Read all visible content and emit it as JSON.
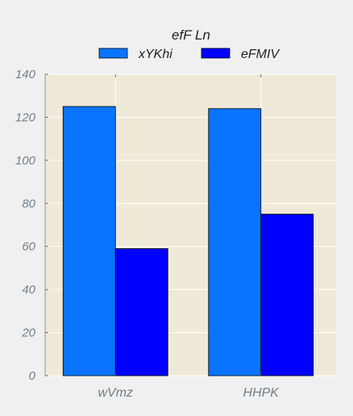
{
  "chart_data": {
    "type": "bar",
    "categories": [
      "wVmz",
      "HHPK"
    ],
    "series": [
      {
        "name": "xYKhi",
        "values": [
          125,
          124
        ],
        "color": "#0a74ff"
      },
      {
        "name": "eFMIV",
        "values": [
          59,
          75
        ],
        "color": "#0000ff"
      }
    ],
    "ylim": [
      0,
      140
    ],
    "yticks": [
      0,
      20,
      40,
      60,
      80,
      100,
      120,
      140
    ],
    "legend_title": "efF Ln",
    "legend_position": "top-center",
    "grid": true,
    "colors": {
      "plot_background": "#efe9d8",
      "figure_background": "#f0f0f0",
      "grid": "#ffffff",
      "tick_text": "#6f7f8c",
      "title_text": "#222222"
    }
  }
}
